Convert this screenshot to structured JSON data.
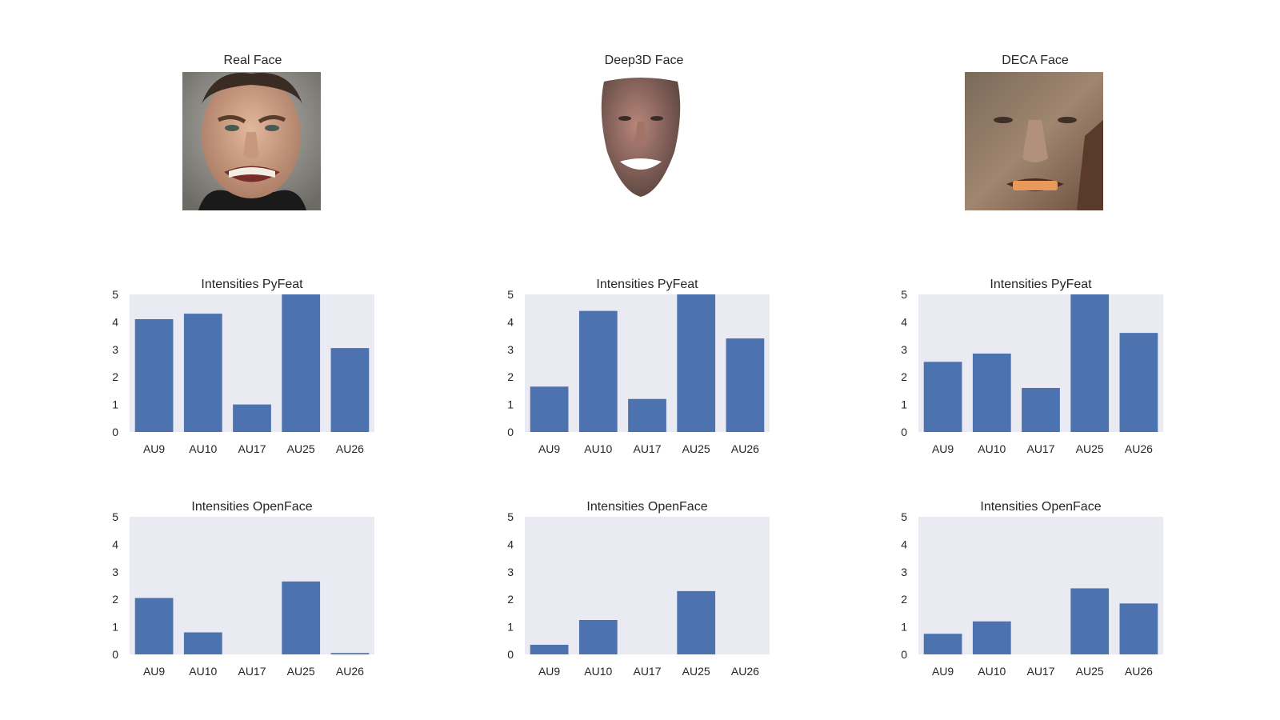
{
  "faces": [
    {
      "title": "Real Face",
      "image": "photo-face-grimace-icon"
    },
    {
      "title": "Deep3D Face",
      "image": "rendered-3d-face-icon"
    },
    {
      "title": "DECA Face",
      "image": "textured-3d-face-icon"
    }
  ],
  "colors": {
    "bar": "#4c72b0",
    "panel": "#eaeaf2",
    "text": "#262626"
  },
  "chart_data": [
    {
      "type": "bar",
      "title": "Intensities PyFeat",
      "categories": [
        "AU9",
        "AU10",
        "AU17",
        "AU25",
        "AU26"
      ],
      "values": [
        4.1,
        4.3,
        1.0,
        5.0,
        3.05
      ],
      "ylim": [
        0,
        5
      ],
      "yticks": [
        0,
        1,
        2,
        3,
        4,
        5
      ],
      "grid": false
    },
    {
      "type": "bar",
      "title": "Intensities PyFeat",
      "categories": [
        "AU9",
        "AU10",
        "AU17",
        "AU25",
        "AU26"
      ],
      "values": [
        1.65,
        4.4,
        1.2,
        5.0,
        3.4
      ],
      "ylim": [
        0,
        5
      ],
      "yticks": [
        0,
        1,
        2,
        3,
        4,
        5
      ],
      "grid": false
    },
    {
      "type": "bar",
      "title": "Intensities PyFeat",
      "categories": [
        "AU9",
        "AU10",
        "AU17",
        "AU25",
        "AU26"
      ],
      "values": [
        2.55,
        2.85,
        1.6,
        5.0,
        3.6
      ],
      "ylim": [
        0,
        5
      ],
      "yticks": [
        0,
        1,
        2,
        3,
        4,
        5
      ],
      "grid": false
    },
    {
      "type": "bar",
      "title": "Intensities OpenFace",
      "categories": [
        "AU9",
        "AU10",
        "AU17",
        "AU25",
        "AU26"
      ],
      "values": [
        2.05,
        0.8,
        0.0,
        2.65,
        0.05
      ],
      "ylim": [
        0,
        5
      ],
      "yticks": [
        0,
        1,
        2,
        3,
        4,
        5
      ],
      "grid": false
    },
    {
      "type": "bar",
      "title": "Intensities OpenFace",
      "categories": [
        "AU9",
        "AU10",
        "AU17",
        "AU25",
        "AU26"
      ],
      "values": [
        0.35,
        1.25,
        0.0,
        2.3,
        0.0
      ],
      "ylim": [
        0,
        5
      ],
      "yticks": [
        0,
        1,
        2,
        3,
        4,
        5
      ],
      "grid": false
    },
    {
      "type": "bar",
      "title": "Intensities OpenFace",
      "categories": [
        "AU9",
        "AU10",
        "AU17",
        "AU25",
        "AU26"
      ],
      "values": [
        0.75,
        1.2,
        0.0,
        2.4,
        1.85
      ],
      "ylim": [
        0,
        5
      ],
      "yticks": [
        0,
        1,
        2,
        3,
        4,
        5
      ],
      "grid": false
    }
  ]
}
